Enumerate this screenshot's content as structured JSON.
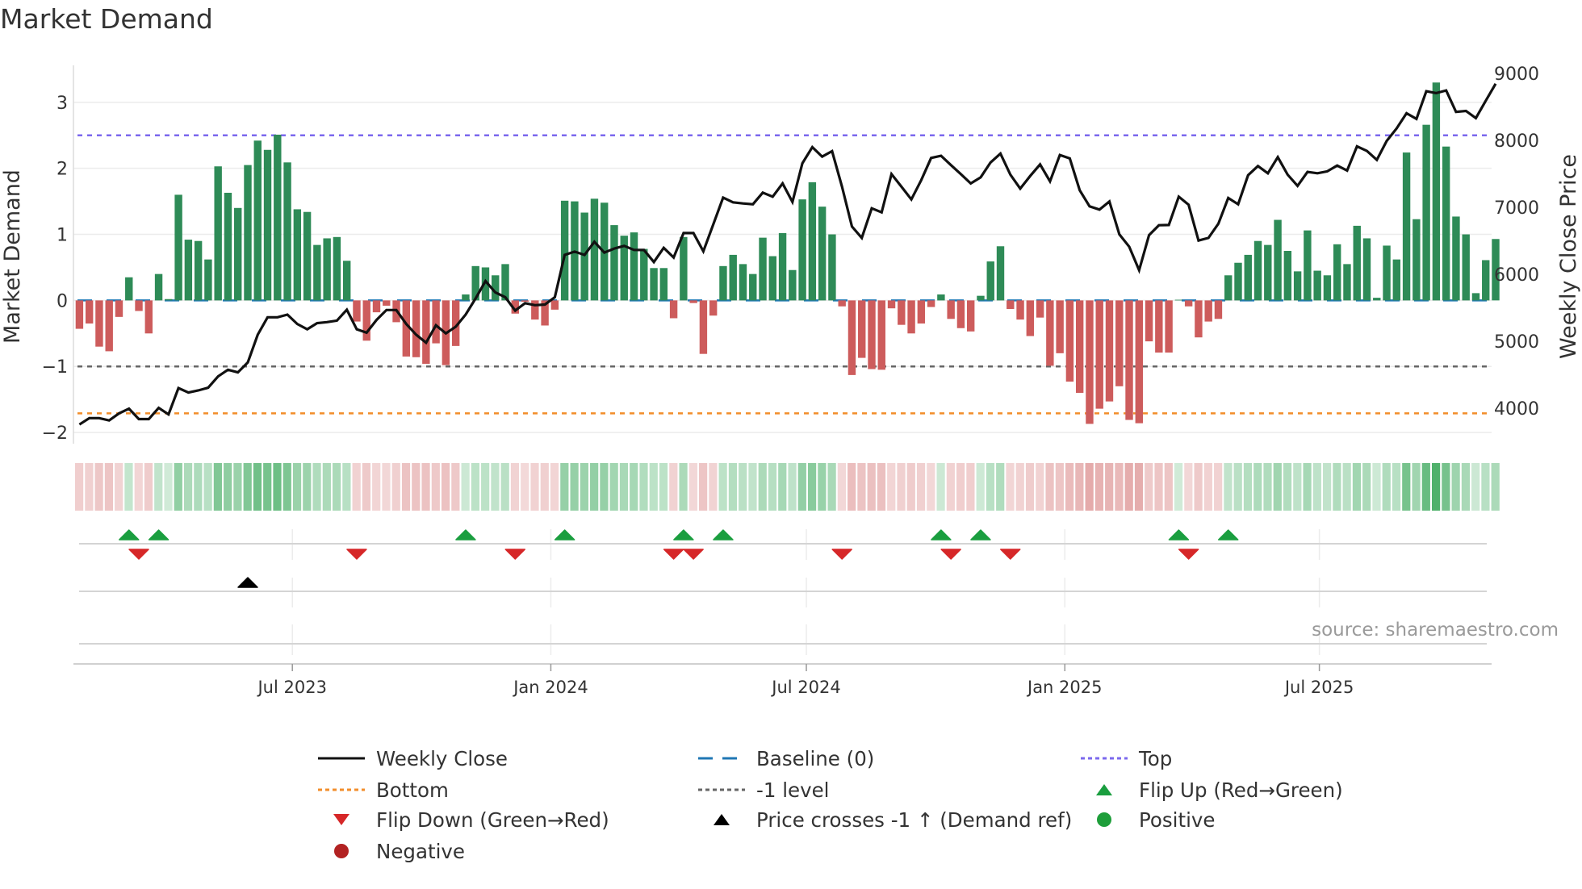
{
  "title": "Market Demand",
  "source": "source: sharemaestro.com",
  "colors": {
    "positive_bar": "#2e8b57",
    "negative_bar": "#cd5c5c",
    "price_line": "#111111",
    "top": "#7b68ee",
    "bottom": "#f28e2b",
    "minus_one": "#666666",
    "baseline": "#1f77b4",
    "flip_up": "#1a9e3f",
    "flip_down": "#d62728",
    "price_cross": "#000000",
    "positive_dot": "#1e9e3a",
    "negative_dot": "#b22222"
  },
  "chart_data": {
    "type": "bar",
    "title": "Market Demand",
    "xlabel": "",
    "ylabel": "Market Demand",
    "ylabel_right": "Weekly Close Price",
    "ylim": [
      -2.17,
      3.56
    ],
    "ylim_right": [
      3473,
      9120
    ],
    "yticks": [
      "3",
      "2",
      "1",
      "0",
      "−1",
      "−2"
    ],
    "ytick_values": [
      3,
      2,
      1,
      0,
      -1,
      -2
    ],
    "yticks_right": [
      "9000",
      "8000",
      "7000",
      "6000",
      "5000",
      "4000"
    ],
    "ytick_right_values": [
      9000,
      8000,
      7000,
      6000,
      5000,
      4000
    ],
    "x_unit": "week index (weekly, ~Feb 2023 to ~Oct 2025)",
    "xticks": [
      {
        "label": "Jul 2023",
        "week": 21.5
      },
      {
        "label": "Jan 2024",
        "week": 47.6
      },
      {
        "label": "Jul 2024",
        "week": 73.4
      },
      {
        "label": "Jan 2025",
        "week": 99.5
      },
      {
        "label": "Jul 2025",
        "week": 125.2
      }
    ],
    "levels": {
      "top": 2.5,
      "minus_one": -1,
      "bottom": -1.71,
      "baseline": 0
    },
    "series": [
      {
        "name": "Market Demand",
        "type": "bar",
        "values": [
          -0.43,
          -0.35,
          -0.7,
          -0.77,
          -0.25,
          0.35,
          -0.16,
          -0.5,
          0.4,
          0.02,
          1.6,
          0.92,
          0.9,
          0.62,
          2.03,
          1.63,
          1.4,
          2.05,
          2.42,
          2.28,
          2.51,
          2.09,
          1.38,
          1.34,
          0.84,
          0.94,
          0.96,
          0.6,
          -0.32,
          -0.61,
          -0.18,
          -0.08,
          -0.33,
          -0.85,
          -0.86,
          -0.96,
          -0.65,
          -0.98,
          -0.69,
          0.09,
          0.52,
          0.5,
          0.38,
          0.55,
          -0.2,
          -0.02,
          -0.29,
          -0.38,
          -0.14,
          1.51,
          1.5,
          1.33,
          1.54,
          1.48,
          1.14,
          0.98,
          1.03,
          0.78,
          0.49,
          0.49,
          -0.27,
          0.96,
          -0.04,
          -0.81,
          -0.23,
          0.52,
          0.69,
          0.55,
          0.4,
          0.95,
          0.67,
          1.02,
          0.46,
          1.53,
          1.79,
          1.42,
          1.0,
          -0.09,
          -1.13,
          -0.87,
          -1.04,
          -1.05,
          -0.12,
          -0.37,
          -0.5,
          -0.35,
          -0.1,
          0.09,
          -0.28,
          -0.42,
          -0.47,
          0.07,
          0.59,
          0.82,
          -0.13,
          -0.29,
          -0.54,
          -0.26,
          -0.99,
          -0.8,
          -1.23,
          -1.4,
          -1.87,
          -1.64,
          -1.53,
          -1.3,
          -1.81,
          -1.86,
          -0.62,
          -0.79,
          -0.79,
          0.01,
          -0.09,
          -0.56,
          -0.32,
          -0.28,
          0.38,
          0.57,
          0.69,
          0.9,
          0.84,
          1.22,
          0.75,
          0.44,
          1.06,
          0.45,
          0.38,
          0.85,
          0.55,
          1.13,
          0.94,
          0.04,
          0.83,
          0.62,
          2.24,
          1.23,
          2.66,
          3.3,
          2.33,
          1.27,
          1.0,
          0.11,
          0.61,
          0.93
        ]
      },
      {
        "name": "Weekly Close",
        "type": "line",
        "axis": "right",
        "values": [
          3760,
          3855,
          3855,
          3820,
          3926,
          3995,
          3840,
          3840,
          4008,
          3910,
          4304,
          4236,
          4268,
          4309,
          4477,
          4577,
          4537,
          4685,
          5100,
          5360,
          5360,
          5400,
          5260,
          5180,
          5273,
          5288,
          5310,
          5473,
          5180,
          5130,
          5320,
          5468,
          5468,
          5260,
          5100,
          4980,
          5240,
          5120,
          5220,
          5400,
          5640,
          5900,
          5730,
          5660,
          5460,
          5570,
          5540,
          5550,
          5660,
          6290,
          6340,
          6290,
          6485,
          6325,
          6385,
          6425,
          6365,
          6364,
          6184,
          6396,
          6252,
          6617,
          6617,
          6345,
          6746,
          7147,
          7075,
          7059,
          7047,
          7220,
          7160,
          7357,
          7080,
          7658,
          7899,
          7757,
          7839,
          7309,
          6714,
          6545,
          6987,
          6926,
          7497,
          7309,
          7119,
          7408,
          7738,
          7770,
          7630,
          7497,
          7357,
          7449,
          7670,
          7803,
          7489,
          7280,
          7468,
          7641,
          7388,
          7782,
          7730,
          7256,
          7015,
          6967,
          7088,
          6598,
          6413,
          6063,
          6586,
          6733,
          6737,
          7160,
          7039,
          6505,
          6545,
          6757,
          7140,
          7047,
          7480,
          7617,
          7509,
          7750,
          7489,
          7321,
          7529,
          7509,
          7538,
          7625,
          7550,
          7911,
          7842,
          7709,
          7991,
          8179,
          8405,
          8321,
          8733,
          8706,
          8745,
          8425,
          8440,
          8333,
          8590,
          8846
        ]
      }
    ],
    "flip_up_weeks": [
      5,
      8,
      39,
      49,
      61,
      65,
      87,
      91,
      111,
      116
    ],
    "flip_down_weeks": [
      6,
      28,
      44,
      60,
      62,
      77,
      88,
      94,
      112
    ],
    "price_cross_weeks": [
      17
    ],
    "grid": true,
    "legend_position": "bottom-center"
  },
  "legend": [
    {
      "label": "Weekly Close",
      "kind": "solid-line",
      "color": "#111111"
    },
    {
      "label": "Baseline (0)",
      "kind": "dashed-line",
      "color": "#1f77b4"
    },
    {
      "label": "Top",
      "kind": "dotted-line",
      "color": "#7b68ee"
    },
    {
      "label": "Bottom",
      "kind": "dotted-line",
      "color": "#f28e2b"
    },
    {
      "label": "-1 level",
      "kind": "dotted-line",
      "color": "#666666"
    },
    {
      "label": "Flip Up (Red→Green)",
      "kind": "triangle-up",
      "color": "#1a9e3f"
    },
    {
      "label": "Flip Down (Green→Red)",
      "kind": "triangle-down",
      "color": "#d62728"
    },
    {
      "label": "Price crosses -1 ↑ (Demand ref)",
      "kind": "triangle-up",
      "color": "#000000"
    },
    {
      "label": "Positive",
      "kind": "circle",
      "color": "#1e9e3a"
    },
    {
      "label": "Negative",
      "kind": "circle",
      "color": "#b22222"
    }
  ]
}
